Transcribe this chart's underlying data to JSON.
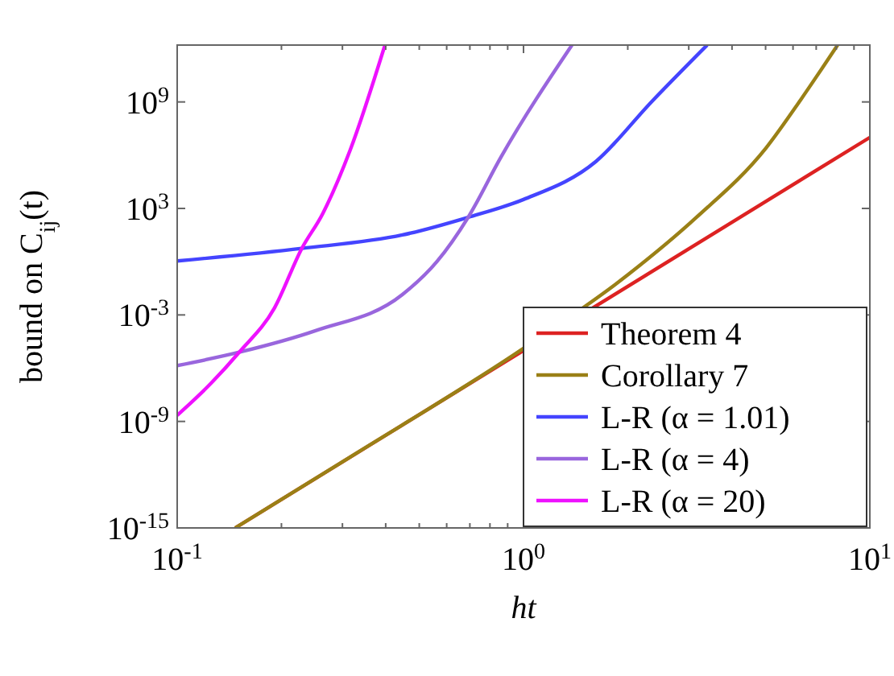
{
  "chart_data": {
    "type": "line",
    "xlabel": "ht",
    "ylabel": "bound on C$_{ij}$(t)",
    "log": "xy",
    "grid": false,
    "legend": "bottom right",
    "line_style": "solid",
    "xlim": [
      0.1,
      10
    ],
    "ylim": [
      1e-15,
      1600000000000.0
    ],
    "xticks": [
      {
        "value": 0.1,
        "label": "10$^{-1}$"
      },
      {
        "value": 0.2,
        "label": null
      },
      {
        "value": 0.3,
        "label": null
      },
      {
        "value": 0.4,
        "label": null
      },
      {
        "value": 0.5,
        "label": null
      },
      {
        "value": 0.6,
        "label": null
      },
      {
        "value": 0.7,
        "label": null
      },
      {
        "value": 0.8,
        "label": null
      },
      {
        "value": 0.9,
        "label": null
      },
      {
        "value": 1,
        "label": "10$^{0}$"
      },
      {
        "value": 2,
        "label": null
      },
      {
        "value": 3,
        "label": null
      },
      {
        "value": 4,
        "label": null
      },
      {
        "value": 5,
        "label": null
      },
      {
        "value": 6,
        "label": null
      },
      {
        "value": 7,
        "label": null
      },
      {
        "value": 8,
        "label": null
      },
      {
        "value": 9,
        "label": null
      },
      {
        "value": 10,
        "label": "10$^{1}$"
      }
    ],
    "yticks": [
      {
        "value": 1e-15,
        "label": "10$^{-15}$"
      },
      {
        "value": 1e-09,
        "label": "10$^{-9}$"
      },
      {
        "value": 0.001,
        "label": "10$^{-3}$"
      },
      {
        "value": 1000,
        "label": "10$^{3}$"
      },
      {
        "value": 1000000000.0,
        "label": "10$^{9}$"
      }
    ],
    "series": [
      {
        "name": "Theorem 4",
        "color": "#dd2222",
        "x": [
          0.147,
          10
        ],
        "values": [
          1e-15,
          10000000.0
        ]
      },
      {
        "name": "Corollary 7",
        "color": "#9a8016",
        "x": [
          0.147,
          0.316,
          1,
          2.0,
          3.16,
          5.01,
          6.31,
          8.07
        ],
        "values": [
          1e-15,
          1e-11,
          1.3e-05,
          0.18,
          320,
          2500000.0,
          1300000000.0,
          1600000000000.0
        ]
      },
      {
        "name": "L-R (α = 1.01)",
        "color": "#4444ff",
        "x": [
          0.1,
          0.229,
          0.447,
          0.692,
          1,
          1.62,
          2.34,
          3.39
        ],
        "values": [
          1.1,
          5.6,
          32,
          316,
          3200,
          450000,
          1000000000.0,
          1600000000000.0
        ]
      },
      {
        "name": "L-R (α = 4)",
        "color": "#9966dd",
        "x": [
          0.1,
          0.151,
          0.251,
          0.447,
          0.562,
          0.692,
          0.861,
          1.38
        ],
        "values": [
          1.4e-06,
          7.9e-06,
          0.00013,
          0.014,
          1,
          316,
          790000,
          1600000000000.0
        ]
      },
      {
        "name": "L-R (α = 20)",
        "color": "#ee11ff",
        "x": [
          0.1,
          0.126,
          0.151,
          0.191,
          0.229,
          0.263,
          0.316,
          0.398
        ],
        "values": [
          2.2e-09,
          1.6e-07,
          7.9e-06,
          0.0025,
          5.6,
          500,
          2000000.0,
          1600000000000.0
        ]
      }
    ]
  }
}
